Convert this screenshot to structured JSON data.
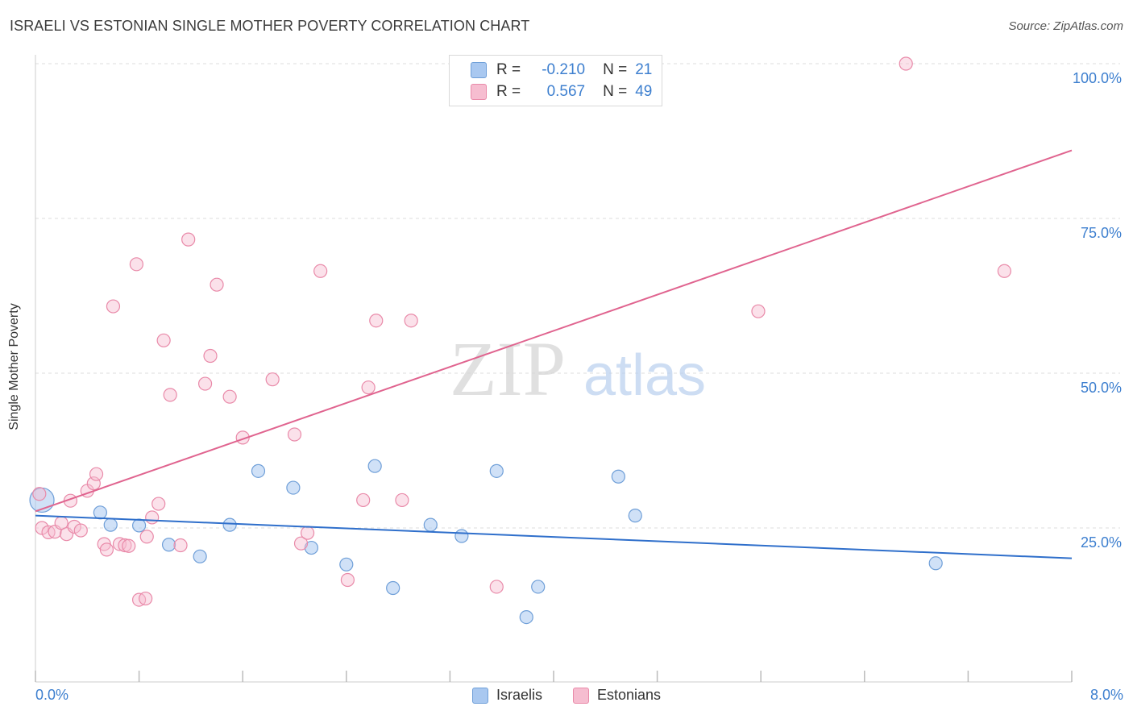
{
  "header": {
    "title": "ISRAELI VS ESTONIAN SINGLE MOTHER POVERTY CORRELATION CHART",
    "source": "Source: ZipAtlas.com"
  },
  "watermark": {
    "zip": "ZIP",
    "atlas": "atlas"
  },
  "legend_top": {
    "rows": [
      {
        "r_label": "R =",
        "r_value": "-0.210",
        "n_label": "N =",
        "n_value": "21"
      },
      {
        "r_label": "R =",
        "r_value": "0.567",
        "n_label": "N =",
        "n_value": "49"
      }
    ]
  },
  "legend_bottom": {
    "items": [
      "Israelis",
      "Estonians"
    ]
  },
  "colors": {
    "israelis_fill": "#a9c8f0",
    "israelis_stroke": "#6f9fd8",
    "israelis_line": "#2f6fcb",
    "estonians_fill": "#f6bdd0",
    "estonians_stroke": "#e98aa9",
    "estonians_line": "#e0648f",
    "tick_label": "#3d7fcf",
    "grid": "#dddddd"
  },
  "chart_data": {
    "type": "scatter",
    "title": "ISRAELI VS ESTONIAN SINGLE MOTHER POVERTY CORRELATION CHART",
    "xlabel": "",
    "ylabel": "Single Mother Poverty",
    "xlim": [
      0,
      8
    ],
    "ylim": [
      0,
      100
    ],
    "x_tick_labels": [
      "0.0%",
      "8.0%"
    ],
    "y_ticks": [
      25,
      50,
      75,
      100
    ],
    "y_tick_labels": [
      "25.0%",
      "50.0%",
      "75.0%",
      "100.0%"
    ],
    "grid": true,
    "legend_position": "top-center",
    "series": [
      {
        "name": "Israelis",
        "R": -0.21,
        "N": 21,
        "points": [
          [
            0.05,
            29.5
          ],
          [
            0.5,
            27.5
          ],
          [
            0.58,
            25.5
          ],
          [
            0.8,
            25.4
          ],
          [
            1.03,
            22.3
          ],
          [
            1.27,
            20.4
          ],
          [
            1.5,
            25.5
          ],
          [
            1.72,
            34.2
          ],
          [
            1.99,
            31.5
          ],
          [
            2.13,
            21.8
          ],
          [
            2.4,
            19.1
          ],
          [
            2.62,
            35.0
          ],
          [
            2.76,
            15.3
          ],
          [
            3.05,
            25.5
          ],
          [
            3.29,
            23.7
          ],
          [
            3.56,
            34.2
          ],
          [
            3.79,
            10.6
          ],
          [
            3.88,
            15.5
          ],
          [
            4.5,
            33.3
          ],
          [
            4.63,
            27.0
          ],
          [
            6.95,
            19.3
          ]
        ],
        "trend": {
          "x": [
            0,
            8
          ],
          "y": [
            27.0,
            20.1
          ]
        }
      },
      {
        "name": "Estonians",
        "R": 0.567,
        "N": 49,
        "points": [
          [
            0.03,
            30.5
          ],
          [
            0.05,
            25.0
          ],
          [
            0.1,
            24.3
          ],
          [
            0.15,
            24.4
          ],
          [
            0.2,
            25.8
          ],
          [
            0.24,
            24.0
          ],
          [
            0.27,
            29.4
          ],
          [
            0.3,
            25.2
          ],
          [
            0.35,
            24.6
          ],
          [
            0.4,
            31.0
          ],
          [
            0.45,
            32.2
          ],
          [
            0.47,
            33.7
          ],
          [
            0.53,
            22.4
          ],
          [
            0.55,
            21.5
          ],
          [
            0.6,
            60.8
          ],
          [
            0.65,
            22.4
          ],
          [
            0.69,
            22.2
          ],
          [
            0.72,
            22.1
          ],
          [
            0.78,
            67.6
          ],
          [
            0.8,
            13.4
          ],
          [
            0.85,
            13.6
          ],
          [
            0.86,
            23.6
          ],
          [
            0.9,
            26.7
          ],
          [
            0.95,
            28.9
          ],
          [
            0.99,
            55.3
          ],
          [
            1.04,
            46.5
          ],
          [
            1.12,
            22.2
          ],
          [
            1.18,
            71.6
          ],
          [
            1.31,
            48.3
          ],
          [
            1.35,
            52.8
          ],
          [
            1.4,
            64.3
          ],
          [
            1.5,
            46.2
          ],
          [
            1.6,
            39.6
          ],
          [
            1.83,
            49.0
          ],
          [
            2.0,
            40.1
          ],
          [
            2.05,
            22.5
          ],
          [
            2.1,
            24.2
          ],
          [
            2.2,
            66.5
          ],
          [
            2.41,
            16.6
          ],
          [
            2.53,
            29.5
          ],
          [
            2.57,
            47.7
          ],
          [
            2.63,
            58.5
          ],
          [
            2.83,
            29.5
          ],
          [
            2.9,
            58.5
          ],
          [
            3.56,
            15.5
          ],
          [
            4.02,
            100.0
          ],
          [
            5.58,
            60.0
          ],
          [
            6.72,
            100.0
          ],
          [
            7.48,
            66.5
          ]
        ],
        "trend": {
          "x": [
            0,
            8
          ],
          "y": [
            27.7,
            86.0
          ]
        }
      }
    ]
  }
}
